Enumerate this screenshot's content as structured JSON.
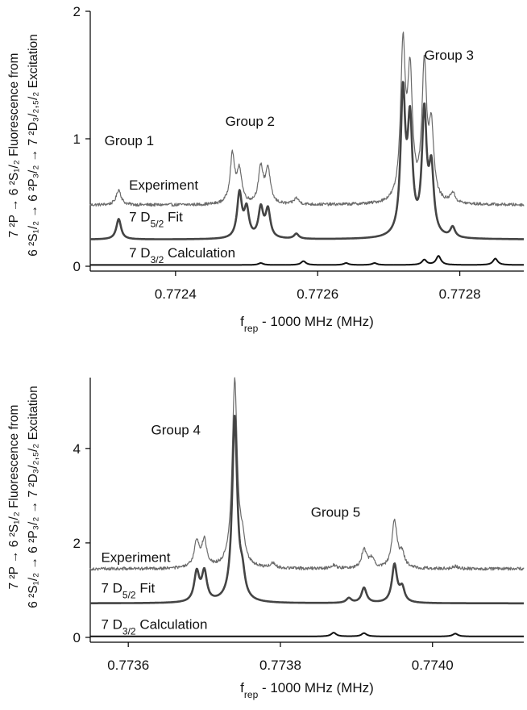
{
  "chart_data": [
    {
      "type": "line",
      "xlabel": "f_rep - 1000 MHz (MHz)",
      "xlabel_main": "f",
      "xlabel_sub": "rep",
      "xlabel_rest": " - 1000 MHz (MHz)",
      "ylabel_line1": "7 ²P → 6 ²S₁/₂ Fluorescence from",
      "ylabel_line2": "6 ²S₁/₂ → 6 ²P₃/₂ → 7 ²D₃/₂,₅/₂ Excitation",
      "xlim": [
        0.77228,
        0.77289
      ],
      "ylim": [
        0,
        2
      ],
      "xticks": [
        0.7724,
        0.7726,
        0.7728
      ],
      "xtick_labels": [
        "0.7724",
        "0.7726",
        "0.7728"
      ],
      "yticks": [
        0,
        1,
        2
      ],
      "ytick_labels": [
        "0",
        "1",
        "2"
      ],
      "series": [
        {
          "name": "Experiment",
          "baseline": 0.48,
          "color": "#6a6a6a",
          "peaks": [
            [
              0.77232,
              0.12,
              4e-06
            ],
            [
              0.77248,
              0.38,
              4e-06
            ],
            [
              0.77249,
              0.25,
              4e-06
            ],
            [
              0.77252,
              0.28,
              4e-06
            ],
            [
              0.77253,
              0.27,
              4e-06
            ],
            [
              0.77257,
              0.05,
              4e-06
            ],
            [
              0.77272,
              1.2,
              4e-06
            ],
            [
              0.77273,
              0.95,
              4e-06
            ],
            [
              0.77275,
              1.05,
              4e-06
            ],
            [
              0.77276,
              0.55,
              4e-06
            ],
            [
              0.77279,
              0.08,
              4e-06
            ]
          ]
        },
        {
          "name": "7 D5/2 Fit",
          "baseline": 0.21,
          "color": "#444444",
          "peaks": [
            [
              0.77232,
              0.16,
              4e-06
            ],
            [
              0.77249,
              0.35,
              4e-06
            ],
            [
              0.7725,
              0.22,
              4e-06
            ],
            [
              0.77252,
              0.23,
              4e-06
            ],
            [
              0.77253,
              0.22,
              4e-06
            ],
            [
              0.77257,
              0.04,
              4e-06
            ],
            [
              0.77272,
              1.1,
              4e-06
            ],
            [
              0.77273,
              0.85,
              4e-06
            ],
            [
              0.77275,
              0.95,
              4e-06
            ],
            [
              0.77276,
              0.5,
              4e-06
            ],
            [
              0.77279,
              0.08,
              4e-06
            ]
          ]
        },
        {
          "name": "7 D3/2 Calculation",
          "baseline": 0.01,
          "color": "#111111",
          "peaks": [
            [
              0.77252,
              0.015,
              4e-06
            ],
            [
              0.77258,
              0.03,
              4e-06
            ],
            [
              0.77264,
              0.015,
              4e-06
            ],
            [
              0.77268,
              0.015,
              4e-06
            ],
            [
              0.77275,
              0.04,
              4e-06
            ],
            [
              0.77277,
              0.07,
              4e-06
            ],
            [
              0.77285,
              0.05,
              4e-06
            ]
          ]
        }
      ],
      "series_labels": [
        {
          "main": "Experiment",
          "sub": "",
          "rest": "",
          "x": 0.77233,
          "y": 0.6
        },
        {
          "main": "7 D",
          "sub": "5/2",
          "rest": " Fit",
          "x": 0.77233,
          "y": 0.35
        },
        {
          "main": "7 D",
          "sub": "3/2",
          "rest": " Calculation",
          "x": 0.77233,
          "y": 0.07
        }
      ],
      "annotations": [
        {
          "text": "Group 1",
          "x": 0.7723,
          "y": 0.95
        },
        {
          "text": "Group 2",
          "x": 0.77247,
          "y": 1.1
        },
        {
          "text": "Group 3",
          "x": 0.77275,
          "y": 1.62
        }
      ]
    },
    {
      "type": "line",
      "xlabel": "f_rep - 1000 MHz (MHz)",
      "xlabel_main": "f",
      "xlabel_sub": "rep",
      "xlabel_rest": " - 1000 MHz (MHz)",
      "ylabel_line1": "7 ²P → 6 ²S₁/₂ Fluorescence from",
      "ylabel_line2": "6 ²S₁/₂ → 6 ²P₃/₂ → 7 ²D₃/₂,₅/₂ Excitation",
      "xlim": [
        0.77355,
        0.77412
      ],
      "ylim": [
        0,
        5.5
      ],
      "xticks": [
        0.7736,
        0.7738,
        0.774
      ],
      "xtick_labels": [
        "0.7736",
        "0.7738",
        "0.7740"
      ],
      "yticks": [
        0,
        2,
        4
      ],
      "ytick_labels": [
        "0",
        "2",
        "4"
      ],
      "series": [
        {
          "name": "Experiment",
          "baseline": 1.45,
          "color": "#6a6a6a",
          "peaks": [
            [
              0.77369,
              0.55,
              4e-06
            ],
            [
              0.7737,
              0.55,
              4e-06
            ],
            [
              0.77374,
              3.95,
              4e-06
            ],
            [
              0.77375,
              0.45,
              4e-06
            ],
            [
              0.77379,
              0.1,
              4e-06
            ],
            [
              0.77387,
              0.08,
              4e-06
            ],
            [
              0.77391,
              0.4,
              4e-06
            ],
            [
              0.77392,
              0.2,
              4e-06
            ],
            [
              0.77395,
              1.0,
              4e-06
            ],
            [
              0.77396,
              0.3,
              4e-06
            ],
            [
              0.77403,
              0.05,
              4e-06
            ]
          ]
        },
        {
          "name": "7 D5/2 Fit",
          "baseline": 0.72,
          "color": "#444444",
          "peaks": [
            [
              0.77369,
              0.62,
              4e-06
            ],
            [
              0.7737,
              0.62,
              4e-06
            ],
            [
              0.77374,
              3.9,
              4e-06
            ],
            [
              0.77375,
              0.45,
              4e-06
            ],
            [
              0.77389,
              0.1,
              4e-06
            ],
            [
              0.77391,
              0.32,
              4e-06
            ],
            [
              0.77395,
              0.8,
              4e-06
            ],
            [
              0.77396,
              0.3,
              4e-06
            ]
          ]
        },
        {
          "name": "7 D3/2 Calculation",
          "baseline": 0.02,
          "color": "#111111",
          "peaks": [
            [
              0.77387,
              0.08,
              4e-06
            ],
            [
              0.77391,
              0.07,
              4e-06
            ],
            [
              0.77403,
              0.06,
              4e-06
            ]
          ]
        }
      ],
      "series_labels": [
        {
          "main": "Experiment",
          "sub": "",
          "rest": "",
          "x": 0.77356,
          "y": 1.6
        },
        {
          "main": "7 D",
          "sub": "5/2",
          "rest": " Fit",
          "x": 0.77356,
          "y": 0.95
        },
        {
          "main": "7 D",
          "sub": "3/2",
          "rest": " Calculation",
          "x": 0.77356,
          "y": 0.18
        }
      ],
      "annotations": [
        {
          "text": "Group 4",
          "x": 0.77363,
          "y": 4.3
        },
        {
          "text": "Group 5",
          "x": 0.77384,
          "y": 2.55
        }
      ]
    }
  ]
}
